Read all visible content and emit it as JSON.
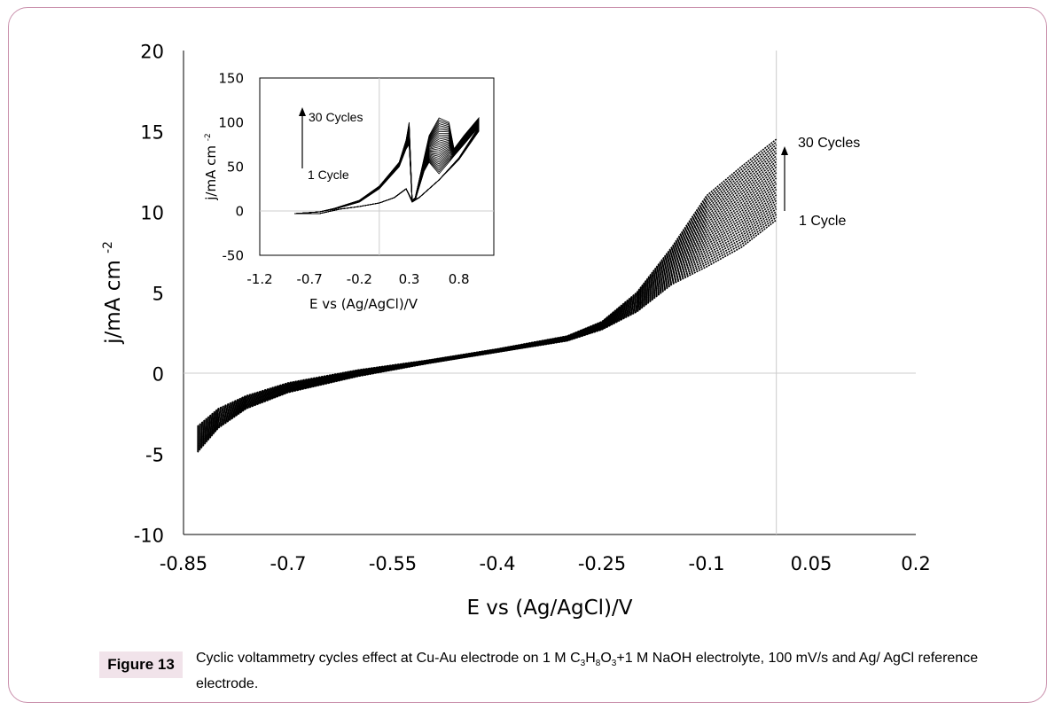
{
  "figure": {
    "label": "Figure 13",
    "caption_pre": "Cyclic voltammetry cycles effect at Cu-Au electrode on 1 M C",
    "sub1": "3",
    "h": "H",
    "sub2": "8",
    "o": "O",
    "sub3": "3",
    "caption_post": "+1 M NaOH electrolyte, 100 mV/s and Ag/ AgCl reference electrode."
  },
  "chart_data": [
    {
      "type": "line",
      "title": "",
      "xlabel": "E vs (Ag/AgCl)/V",
      "ylabel": "j/mA cm",
      "ylabel_sup": "-2",
      "xlim": [
        -0.85,
        0.2
      ],
      "ylim": [
        -10,
        20
      ],
      "xticks": [
        "-0.85",
        "-0.7",
        "-0.55",
        "-0.4",
        "-0.25",
        "-0.1",
        "0.05",
        "0.2"
      ],
      "yticks": [
        "20",
        "15",
        "10",
        "5",
        "0",
        "-5",
        "-10"
      ],
      "annotations": {
        "top": "30 Cycles",
        "bottom": "1 Cycle"
      },
      "n_cycles": 30,
      "x": [
        -0.83,
        -0.8,
        -0.76,
        -0.7,
        -0.6,
        -0.5,
        -0.4,
        -0.3,
        -0.25,
        -0.2,
        -0.15,
        -0.1,
        -0.05,
        0
      ],
      "cycle_1": [
        -4.9,
        -3.4,
        -2.2,
        -1.2,
        -0.2,
        0.6,
        1.3,
        2.0,
        2.7,
        3.8,
        5.5,
        6.6,
        7.8,
        9.5
      ],
      "cycle_30": [
        -3.3,
        -2.2,
        -1.4,
        -0.6,
        0.2,
        0.8,
        1.5,
        2.3,
        3.2,
        5.0,
        7.8,
        11.0,
        12.8,
        14.5
      ]
    },
    {
      "type": "line",
      "inset": true,
      "xlabel": "E vs (Ag/AgCl)/V",
      "ylabel": "j/mA cm",
      "ylabel_sup": "-2",
      "xlim": [
        -1.2,
        1.15
      ],
      "ylim": [
        -50,
        150
      ],
      "xticks": [
        "-1.2",
        "-0.7",
        "-0.2",
        "0.3",
        "0.8"
      ],
      "yticks": [
        "150",
        "100",
        "50",
        "0",
        "-50"
      ],
      "annotations": {
        "top": "30 Cycles",
        "bottom": "1 Cycle"
      },
      "n_cycles": 30,
      "x": [
        -0.85,
        -0.6,
        -0.4,
        -0.2,
        0,
        0.15,
        0.27,
        0.33,
        0.36,
        0.45,
        0.5,
        0.6,
        0.7,
        0.75,
        0.85,
        1.0,
        1.0,
        0.8,
        0.6,
        0.4,
        0.33,
        0.3,
        0.27,
        0.2,
        0,
        -0.2,
        -0.45,
        -0.6,
        -0.85
      ],
      "cycle_1": [
        -3,
        -3,
        2,
        5,
        9,
        15,
        25,
        10,
        12,
        45,
        55,
        42,
        55,
        62,
        75,
        95,
        90,
        58,
        35,
        15,
        10,
        75,
        70,
        50,
        25,
        10,
        2,
        -1,
        -3
      ],
      "cycle_30": [
        -3,
        -3,
        2,
        5,
        9,
        15,
        25,
        12,
        15,
        60,
        85,
        105,
        100,
        70,
        85,
        105,
        95,
        60,
        35,
        15,
        12,
        100,
        80,
        55,
        28,
        12,
        3,
        -1,
        -3
      ]
    }
  ]
}
